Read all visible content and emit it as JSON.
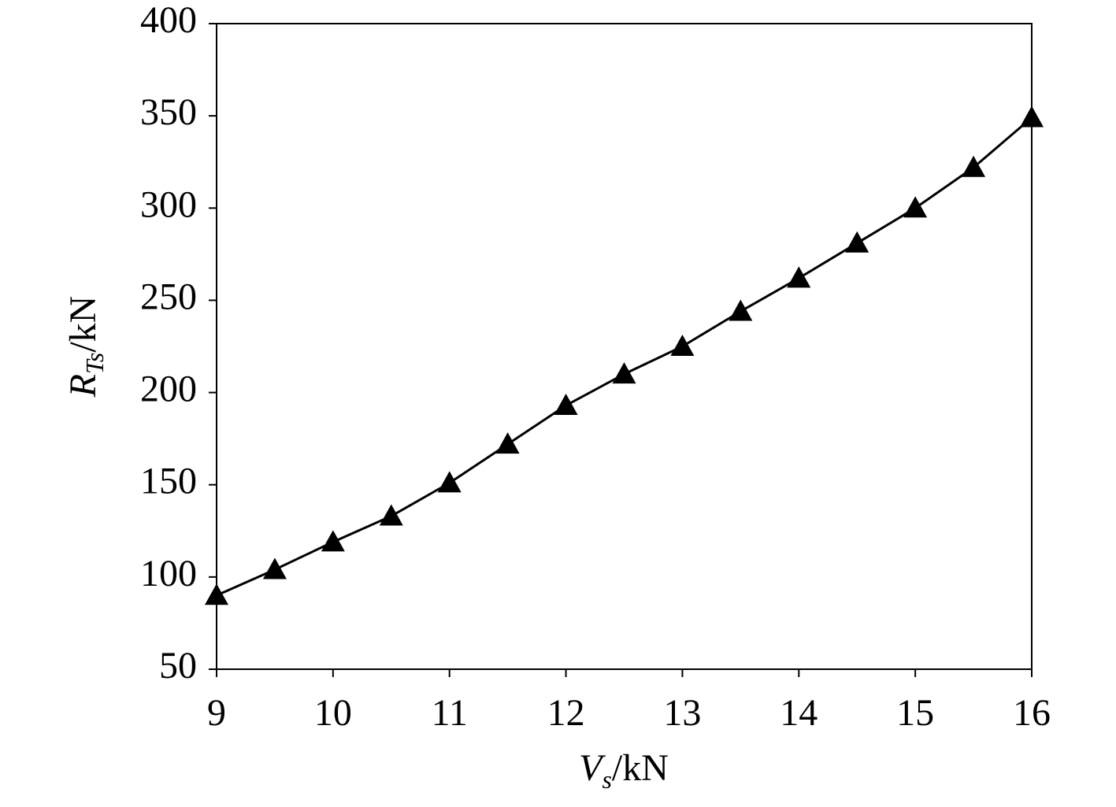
{
  "chart_data": {
    "type": "line",
    "xlabel": [
      "V",
      "s",
      "/kN"
    ],
    "ylabel": [
      "R",
      "Ts",
      "/kN"
    ],
    "x": [
      9,
      9.5,
      10,
      10.5,
      11,
      11.5,
      12,
      12.5,
      13,
      13.5,
      14,
      14.5,
      15,
      15.5,
      16
    ],
    "series": [
      {
        "color": "#000000",
        "marker": "triangle",
        "values": [
          90,
          104,
          119,
          133,
          151,
          172,
          193,
          210,
          225,
          244,
          262,
          281,
          300,
          322,
          349
        ]
      }
    ],
    "xlim": [
      9,
      16
    ],
    "xticks": [
      9,
      10,
      11,
      12,
      13,
      14,
      15,
      16
    ],
    "ylim": [
      50,
      400
    ],
    "yticks": [
      50,
      100,
      150,
      200,
      250,
      300,
      350,
      400
    ],
    "grid": false
  }
}
